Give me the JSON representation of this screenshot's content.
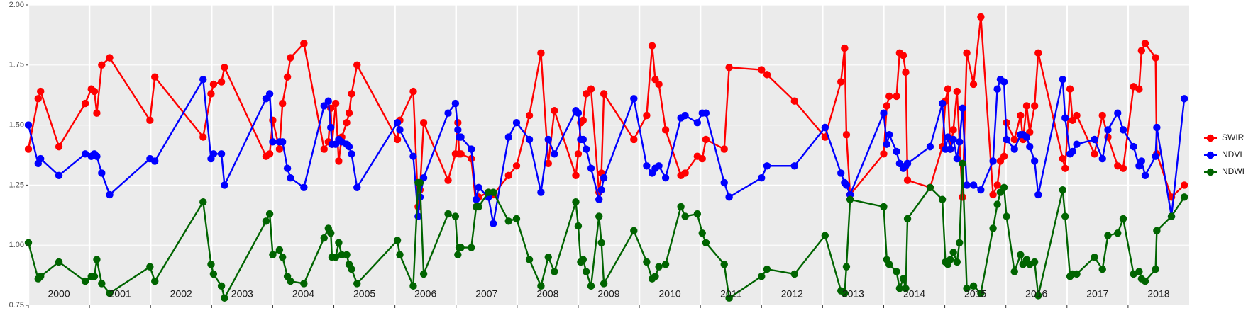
{
  "chart_data": {
    "type": "line",
    "x": [
      2000.0,
      2000.16,
      2000.2,
      2000.5,
      2000.93,
      2001.03,
      2001.08,
      2001.12,
      2001.2,
      2001.33,
      2001.99,
      2002.07,
      2002.86,
      2002.99,
      2003.03,
      2003.16,
      2003.21,
      2003.89,
      2003.95,
      2004.0,
      2004.11,
      2004.16,
      2004.24,
      2004.29,
      2004.51,
      2004.84,
      2004.91,
      2004.95,
      2004.97,
      2005.03,
      2005.08,
      2005.13,
      2005.21,
      2005.25,
      2005.29,
      2005.38,
      2006.04,
      2006.08,
      2006.3,
      2006.38,
      2006.41,
      2006.47,
      2006.87,
      2006.99,
      2007.03,
      2007.05,
      2007.08,
      2007.25,
      2007.33,
      2007.37,
      2007.53,
      2007.61,
      2007.86,
      2007.99,
      2008.2,
      2008.39,
      2008.51,
      2008.61,
      2008.96,
      2009.0,
      2009.04,
      2009.08,
      2009.13,
      2009.21,
      2009.34,
      2009.38,
      2009.42,
      2009.91,
      2010.12,
      2010.21,
      2010.26,
      2010.32,
      2010.43,
      2010.68,
      2010.75,
      2010.95,
      2011.03,
      2011.09,
      2011.39,
      2011.47,
      2012.0,
      2012.09,
      2012.54,
      2013.04,
      2013.3,
      2013.36,
      2013.39,
      2013.45,
      2014.0,
      2014.05,
      2014.09,
      2014.21,
      2014.26,
      2014.32,
      2014.36,
      2014.39,
      2014.76,
      2014.96,
      2015.01,
      2015.05,
      2015.09,
      2015.14,
      2015.2,
      2015.24,
      2015.29,
      2015.36,
      2015.47,
      2015.59,
      2015.79,
      2015.86,
      2015.91,
      2015.97,
      2016.01,
      2016.14,
      2016.24,
      2016.28,
      2016.34,
      2016.39,
      2016.47,
      2016.53,
      2016.93,
      2016.97,
      2017.05,
      2017.09,
      2017.16,
      2017.45,
      2017.58,
      2017.67,
      2017.83,
      2017.92,
      2018.09,
      2018.18,
      2018.22,
      2018.28,
      2018.45,
      2018.47,
      2018.71,
      2018.92
    ],
    "series": [
      {
        "name": "SWIR",
        "color": "#ff0000",
        "values": [
          1.4,
          1.61,
          1.64,
          1.41,
          1.59,
          1.65,
          1.64,
          1.55,
          1.75,
          1.78,
          1.52,
          1.7,
          1.45,
          1.63,
          1.67,
          1.68,
          1.74,
          1.37,
          1.38,
          1.52,
          1.4,
          1.59,
          1.7,
          1.78,
          1.84,
          1.4,
          1.43,
          1.57,
          1.42,
          1.59,
          1.35,
          1.45,
          1.51,
          1.55,
          1.63,
          1.75,
          1.44,
          1.52,
          1.64,
          1.16,
          1.23,
          1.51,
          1.27,
          1.38,
          1.51,
          1.38,
          1.38,
          1.36,
          1.16,
          1.2,
          1.22,
          1.21,
          1.29,
          1.33,
          1.54,
          1.8,
          1.34,
          1.56,
          1.29,
          1.38,
          1.51,
          1.52,
          1.63,
          1.65,
          1.22,
          1.3,
          1.63,
          1.44,
          1.54,
          1.83,
          1.69,
          1.67,
          1.48,
          1.29,
          1.3,
          1.37,
          1.36,
          1.44,
          1.4,
          1.74,
          1.73,
          1.71,
          1.6,
          1.45,
          1.68,
          1.82,
          1.46,
          1.21,
          1.38,
          1.58,
          1.62,
          1.62,
          1.8,
          1.79,
          1.72,
          1.27,
          1.24,
          1.41,
          1.6,
          1.65,
          1.4,
          1.48,
          1.64,
          1.43,
          1.2,
          1.8,
          1.67,
          1.95,
          1.21,
          1.25,
          1.35,
          1.37,
          1.51,
          1.44,
          1.54,
          1.44,
          1.58,
          1.47,
          1.58,
          1.8,
          1.36,
          1.32,
          1.65,
          1.52,
          1.54,
          1.38,
          1.54,
          1.45,
          1.33,
          1.32,
          1.66,
          1.65,
          1.81,
          1.84,
          1.78,
          1.38,
          1.2,
          1.25
        ]
      },
      {
        "name": "NDVI",
        "color": "#0000ff",
        "values": [
          1.5,
          1.34,
          1.36,
          1.29,
          1.38,
          1.37,
          1.38,
          1.37,
          1.3,
          1.21,
          1.36,
          1.35,
          1.69,
          1.36,
          1.38,
          1.38,
          1.25,
          1.61,
          1.63,
          1.43,
          1.43,
          1.43,
          1.32,
          1.28,
          1.24,
          1.58,
          1.6,
          1.49,
          1.42,
          1.42,
          1.44,
          1.43,
          1.42,
          1.41,
          1.38,
          1.24,
          1.51,
          1.48,
          1.37,
          1.12,
          1.2,
          1.28,
          1.55,
          1.59,
          1.48,
          1.45,
          1.45,
          1.4,
          1.19,
          1.24,
          1.2,
          1.09,
          1.45,
          1.51,
          1.44,
          1.22,
          1.44,
          1.38,
          1.56,
          1.55,
          1.44,
          1.44,
          1.4,
          1.32,
          1.19,
          1.23,
          1.28,
          1.61,
          1.33,
          1.3,
          1.32,
          1.33,
          1.28,
          1.53,
          1.54,
          1.51,
          1.55,
          1.55,
          1.26,
          1.2,
          1.28,
          1.33,
          1.33,
          1.49,
          1.3,
          1.26,
          1.25,
          1.21,
          1.55,
          1.42,
          1.46,
          1.39,
          1.34,
          1.32,
          1.33,
          1.34,
          1.41,
          1.59,
          1.4,
          1.45,
          1.4,
          1.44,
          1.36,
          1.43,
          1.57,
          1.25,
          1.25,
          1.23,
          1.35,
          1.65,
          1.69,
          1.68,
          1.44,
          1.4,
          1.46,
          1.46,
          1.45,
          1.41,
          1.35,
          1.21,
          1.69,
          1.53,
          1.38,
          1.39,
          1.42,
          1.44,
          1.36,
          1.48,
          1.55,
          1.48,
          1.41,
          1.33,
          1.35,
          1.29,
          1.37,
          1.49,
          1.12,
          1.61
        ]
      },
      {
        "name": "NDWI",
        "color": "#006400",
        "values": [
          1.01,
          0.86,
          0.87,
          0.93,
          0.85,
          0.87,
          0.87,
          0.94,
          0.84,
          0.8,
          0.91,
          0.85,
          1.18,
          0.92,
          0.88,
          0.83,
          0.78,
          1.1,
          1.13,
          0.96,
          0.98,
          0.95,
          0.87,
          0.85,
          0.84,
          1.03,
          1.07,
          1.05,
          0.95,
          0.95,
          1.01,
          0.96,
          0.96,
          0.92,
          0.9,
          0.84,
          1.02,
          0.96,
          0.83,
          1.26,
          1.26,
          0.88,
          1.13,
          1.12,
          0.96,
          0.99,
          0.99,
          0.99,
          1.16,
          1.16,
          1.22,
          1.22,
          1.1,
          1.11,
          0.94,
          0.83,
          0.95,
          0.89,
          1.18,
          1.08,
          0.93,
          0.94,
          0.89,
          0.83,
          1.12,
          1.01,
          0.84,
          1.06,
          0.93,
          0.86,
          0.87,
          0.91,
          0.92,
          1.16,
          1.12,
          1.13,
          1.05,
          1.01,
          0.92,
          0.78,
          0.87,
          0.9,
          0.88,
          1.04,
          0.81,
          0.8,
          0.91,
          1.19,
          1.16,
          0.94,
          0.92,
          0.89,
          0.82,
          0.86,
          0.82,
          1.11,
          1.24,
          1.19,
          0.93,
          0.92,
          0.94,
          0.97,
          0.93,
          1.01,
          1.34,
          0.82,
          0.83,
          0.8,
          1.07,
          1.17,
          1.22,
          1.24,
          1.12,
          0.89,
          0.96,
          0.92,
          0.94,
          0.92,
          0.93,
          0.79,
          1.23,
          1.12,
          0.87,
          0.88,
          0.88,
          0.95,
          0.9,
          1.04,
          1.05,
          1.11,
          0.88,
          0.89,
          0.86,
          0.85,
          0.9,
          1.06,
          1.12,
          1.2
        ]
      }
    ],
    "xlim": [
      2000,
      2019
    ],
    "xticks": [
      2000,
      2001,
      2002,
      2003,
      2004,
      2005,
      2006,
      2007,
      2008,
      2009,
      2010,
      2011,
      2012,
      2013,
      2014,
      2015,
      2016,
      2017,
      2018
    ],
    "ylim": [
      0.75,
      2.0
    ],
    "yticks": [
      0.75,
      {
        "value": 1.0,
        "label": "1.00"
      },
      1.25,
      {
        "value": 1.5,
        "label": "1.50"
      },
      1.75,
      {
        "value": 2.0,
        "label": "2.00"
      }
    ],
    "grid": true,
    "legend": "right"
  }
}
